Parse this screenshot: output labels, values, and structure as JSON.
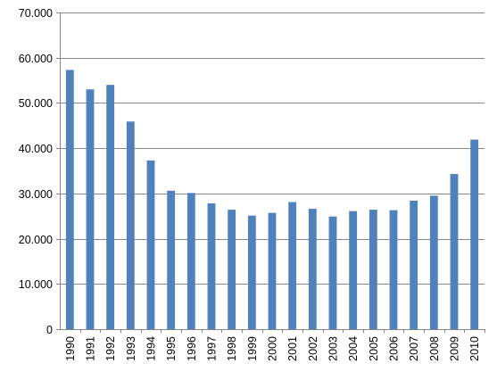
{
  "chart_data": {
    "type": "bar",
    "title": "",
    "xlabel": "",
    "ylabel": "",
    "ylim": [
      0,
      70000
    ],
    "yticks": [
      0,
      10000,
      20000,
      30000,
      40000,
      50000,
      60000,
      70000
    ],
    "ytick_labels": [
      "0",
      "10.000",
      "20.000",
      "30.000",
      "40.000",
      "50.000",
      "60.000",
      "70.000"
    ],
    "grid": true,
    "legend": "none",
    "bar_color": "#4F81BD",
    "categories": [
      "1990",
      "1991",
      "1992",
      "1993",
      "1994",
      "1995",
      "1996",
      "1997",
      "1998",
      "1999",
      "2000",
      "2001",
      "2002",
      "2003",
      "2004",
      "2005",
      "2006",
      "2007",
      "2008",
      "2009",
      "2010"
    ],
    "values": [
      57300,
      53000,
      54000,
      45900,
      37300,
      30600,
      30100,
      27800,
      26400,
      25100,
      25700,
      28100,
      26600,
      24900,
      26100,
      26400,
      26300,
      28400,
      29500,
      34300,
      41900
    ]
  }
}
